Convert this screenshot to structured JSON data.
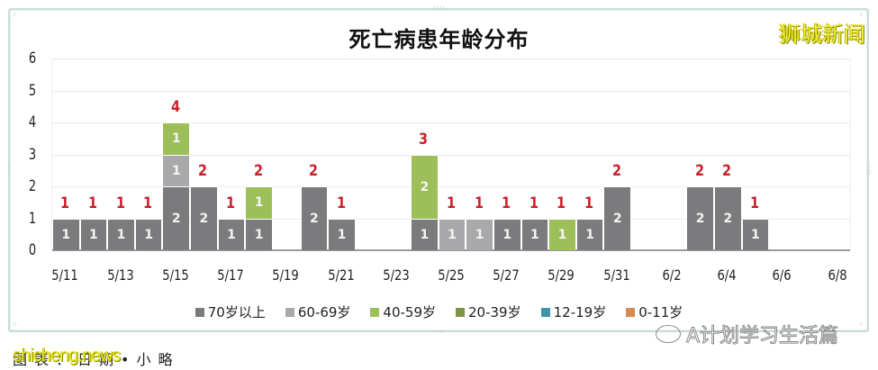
{
  "header": {
    "title": "死亡病患年龄分布",
    "brand": "狮城新闻"
  },
  "footer": {
    "credit_overlay": "shicheng.news",
    "credit_text": "图表：日期•小略",
    "wechat_account": "A计划学习生活篇"
  },
  "legend": [
    {
      "label": "70岁以上",
      "color": "#7b7a7c"
    },
    {
      "label": "60-69岁",
      "color": "#a9a8aa"
    },
    {
      "label": "40-59岁",
      "color": "#9cbf5a"
    },
    {
      "label": "20-39岁",
      "color": "#7f9442"
    },
    {
      "label": "12-19岁",
      "color": "#3e95a5"
    },
    {
      "label": "0-11岁",
      "color": "#d48c52"
    }
  ],
  "y_ticks": [
    "0",
    "1",
    "2",
    "3",
    "4",
    "5",
    "6"
  ],
  "x_ticks": [
    "5/11",
    "5/13",
    "5/15",
    "5/17",
    "5/19",
    "5/21",
    "5/23",
    "5/25",
    "5/27",
    "5/29",
    "5/31",
    "6/2",
    "6/4",
    "6/6",
    "6/8"
  ],
  "chart_data": {
    "type": "bar",
    "stacked": true,
    "title": "死亡病患年龄分布",
    "xlabel": "",
    "ylabel": "",
    "ylim": [
      0,
      6
    ],
    "grid": true,
    "legend_position": "bottom",
    "categories": [
      "5/11",
      "5/12",
      "5/13",
      "5/14",
      "5/15",
      "5/16",
      "5/17",
      "5/18",
      "5/19",
      "5/20",
      "5/21",
      "5/22",
      "5/23",
      "5/24",
      "5/25",
      "5/26",
      "5/27",
      "5/28",
      "5/29",
      "5/30",
      "5/31",
      "6/1",
      "6/2",
      "6/3",
      "6/4",
      "6/5",
      "6/6",
      "6/7",
      "6/8"
    ],
    "series": [
      {
        "name": "70岁以上",
        "values": [
          1,
          1,
          1,
          1,
          2,
          2,
          1,
          1,
          0,
          2,
          1,
          0,
          0,
          1,
          0,
          0,
          1,
          1,
          0,
          1,
          2,
          0,
          0,
          2,
          2,
          1,
          0,
          0,
          0
        ]
      },
      {
        "name": "60-69岁",
        "values": [
          0,
          0,
          0,
          0,
          1,
          0,
          0,
          0,
          0,
          0,
          0,
          0,
          0,
          0,
          1,
          1,
          0,
          0,
          0,
          0,
          0,
          0,
          0,
          0,
          0,
          0,
          0,
          0,
          0
        ]
      },
      {
        "name": "40-59岁",
        "values": [
          0,
          0,
          0,
          0,
          1,
          0,
          0,
          1,
          0,
          0,
          0,
          0,
          0,
          2,
          0,
          0,
          0,
          0,
          1,
          0,
          0,
          0,
          0,
          0,
          0,
          0,
          0,
          0,
          0
        ]
      },
      {
        "name": "20-39岁",
        "values": [
          0,
          0,
          0,
          0,
          0,
          0,
          0,
          0,
          0,
          0,
          0,
          0,
          0,
          0,
          0,
          0,
          0,
          0,
          0,
          0,
          0,
          0,
          0,
          0,
          0,
          0,
          0,
          0,
          0
        ]
      },
      {
        "name": "12-19岁",
        "values": [
          0,
          0,
          0,
          0,
          0,
          0,
          0,
          0,
          0,
          0,
          0,
          0,
          0,
          0,
          0,
          0,
          0,
          0,
          0,
          0,
          0,
          0,
          0,
          0,
          0,
          0,
          0,
          0,
          0
        ]
      },
      {
        "name": "0-11岁",
        "values": [
          0,
          0,
          0,
          0,
          0,
          0,
          0,
          0,
          0,
          0,
          0,
          0,
          0,
          0,
          0,
          0,
          0,
          0,
          0,
          0,
          0,
          0,
          0,
          0,
          0,
          0,
          0,
          0,
          0
        ]
      }
    ],
    "totals": [
      1,
      1,
      1,
      1,
      4,
      2,
      1,
      2,
      0,
      2,
      1,
      0,
      0,
      3,
      1,
      1,
      1,
      1,
      1,
      1,
      2,
      0,
      0,
      2,
      2,
      1,
      0,
      0,
      0
    ],
    "total_label_color": "#c8202a"
  }
}
